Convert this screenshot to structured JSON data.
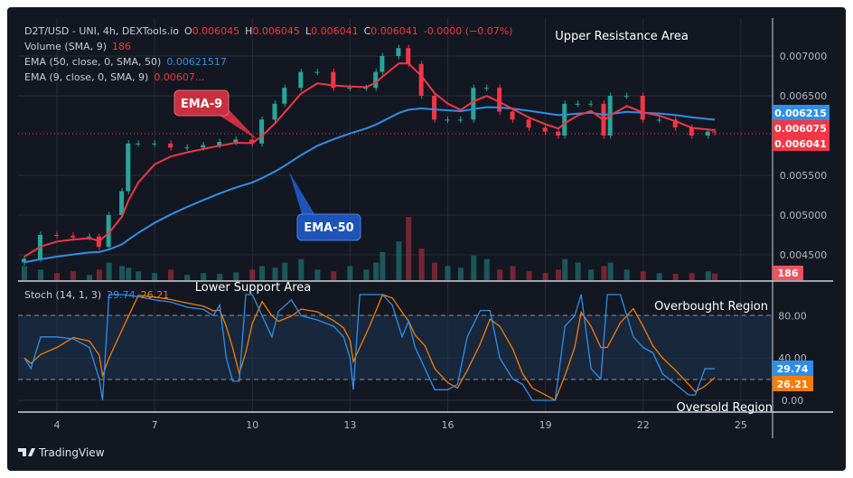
{
  "header": {
    "symbol": "D2T/USD - UNI, 4h, DEXTools.io",
    "o_label": "O",
    "o": "0.006045",
    "h_label": "H",
    "h": "0.006045",
    "l_label": "L",
    "l": "0.006041",
    "c_label": "C",
    "c": "0.006041",
    "change": "-0.0000 (−0.07%)",
    "volume_label": "Volume (SMA, 9)",
    "volume_value": "186",
    "ema50_label": "EMA (50, close, 0, SMA, 50)",
    "ema50_value": "0.00621517",
    "ema9_label": "EMA (9, close, 0, SMA, 9)",
    "ema9_value": "0.00607..."
  },
  "annotations": {
    "ema9": "EMA-9",
    "ema50": "EMA-50",
    "upper": "Upper Resistance Area",
    "lower": "Lower Support Area",
    "overbought": "Overbought Region",
    "oversold": "Oversold Region"
  },
  "price_axis": {
    "ticks": [
      "0.007000",
      "0.006500",
      "0.005500",
      "0.005000",
      "0.004500"
    ],
    "tick_values": [
      0.007,
      0.0065,
      0.0055,
      0.005,
      0.0045
    ],
    "badges": {
      "ema50": "0.006215",
      "ema9": "0.006075",
      "last": "0.006041",
      "volume": "186"
    }
  },
  "stoch": {
    "label": "Stoch (14, 1, 3)",
    "k_value": "29.74",
    "d_value": "26.21",
    "ticks": [
      "80.00",
      "40.00",
      "0.00"
    ],
    "tick_values": [
      80,
      40,
      0
    ],
    "bands": [
      20,
      80
    ]
  },
  "time_axis": {
    "labels": [
      "4",
      "7",
      "10",
      "13",
      "16",
      "19",
      "22",
      "25"
    ],
    "days": [
      4,
      7,
      10,
      13,
      16,
      19,
      22,
      25
    ]
  },
  "brand": "TradingView",
  "colors": {
    "bg": "#131722",
    "up": "#26a69a",
    "down": "#f23645",
    "ema9": "#f23645",
    "ema50": "#2f8fe8",
    "k": "#2f8fe8",
    "d": "#f57c00",
    "grid": "#262b38"
  },
  "chart_data": {
    "type": "candlestick",
    "title": "D2T/USD - UNI, 4h, DEXTools.io",
    "ylim": [
      0.0043,
      0.0073
    ],
    "price": {
      "day": [
        3.0,
        3.5,
        4,
        4.5,
        5,
        5.3,
        5.6,
        6,
        6.2,
        6.5,
        7,
        7.5,
        8,
        8.5,
        9,
        9.5,
        10,
        10.3,
        10.7,
        11,
        11.5,
        12,
        12.5,
        13,
        13.5,
        13.8,
        14,
        14.5,
        14.8,
        15.2,
        15.6,
        16,
        16.4,
        16.8,
        17.2,
        17.6,
        18,
        18.5,
        19,
        19.4,
        19.6,
        20,
        20.4,
        20.8,
        21,
        21.5,
        22,
        22.5,
        23,
        23.5,
        24,
        24.2
      ],
      "close": [
        0.00445,
        0.00475,
        0.00474,
        0.00472,
        0.00473,
        0.0046,
        0.005,
        0.0053,
        0.0059,
        0.0059,
        0.0059,
        0.00585,
        0.00585,
        0.00588,
        0.00592,
        0.00595,
        0.0059,
        0.0062,
        0.0064,
        0.0066,
        0.0068,
        0.0068,
        0.0066,
        0.0066,
        0.0066,
        0.0068,
        0.007,
        0.0071,
        0.0069,
        0.0065,
        0.0062,
        0.0062,
        0.0062,
        0.0066,
        0.0066,
        0.0063,
        0.0062,
        0.0061,
        0.00605,
        0.006,
        0.0064,
        0.0064,
        0.0064,
        0.006,
        0.0065,
        0.0065,
        0.0062,
        0.0062,
        0.0061,
        0.006,
        0.00605,
        0.006041
      ],
      "volume": [
        400,
        300,
        200,
        250,
        150,
        300,
        500,
        400,
        350,
        250,
        200,
        300,
        150,
        200,
        180,
        220,
        300,
        400,
        350,
        500,
        600,
        300,
        250,
        400,
        300,
        500,
        800,
        1100,
        1800,
        900,
        500,
        400,
        350,
        700,
        600,
        300,
        400,
        250,
        200,
        300,
        600,
        500,
        300,
        400,
        500,
        300,
        250,
        200,
        180,
        200,
        250,
        186
      ]
    },
    "stoch": {
      "day": [
        3,
        3.2,
        3.5,
        4,
        4.5,
        5,
        5.3,
        5.4,
        5.6,
        6,
        6.5,
        7,
        7.5,
        8,
        8.5,
        8.8,
        9,
        9.2,
        9.4,
        9.6,
        9.8,
        10,
        10.3,
        10.6,
        10.8,
        11.2,
        11.5,
        12,
        12.5,
        12.8,
        13,
        13.1,
        13.3,
        13.6,
        14,
        14.3,
        14.6,
        14.8,
        15,
        15.3,
        15.6,
        16,
        16.3,
        16.6,
        17,
        17.3,
        17.6,
        18,
        18.3,
        18.6,
        19,
        19.3,
        19.6,
        19.9,
        20.1,
        20.4,
        20.7,
        20.9,
        21.3,
        21.7,
        22,
        22.3,
        22.6,
        23,
        23.4,
        23.6,
        23.9,
        24.2
      ],
      "k": [
        40,
        30,
        60,
        60,
        58,
        50,
        20,
        0,
        100,
        100,
        98,
        95,
        93,
        88,
        86,
        80,
        90,
        40,
        18,
        18,
        100,
        100,
        80,
        60,
        84,
        95,
        80,
        76,
        70,
        60,
        40,
        10,
        100,
        100,
        100,
        90,
        60,
        75,
        50,
        30,
        10,
        10,
        15,
        60,
        85,
        85,
        40,
        20,
        15,
        0,
        0,
        0,
        70,
        80,
        100,
        30,
        20,
        100,
        100,
        60,
        50,
        45,
        25,
        15,
        5,
        5,
        30,
        29.74
      ]
    },
    "xlim": [
      2.9,
      26.1
    ]
  }
}
